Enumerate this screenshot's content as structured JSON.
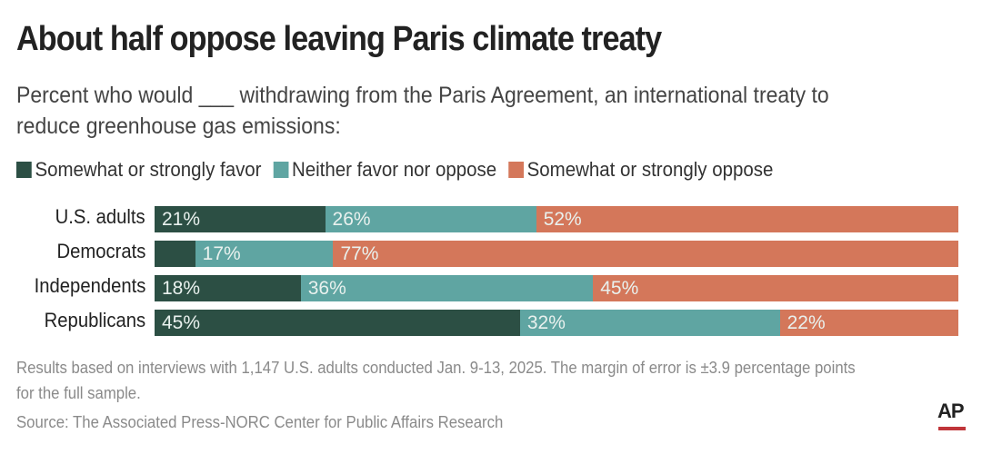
{
  "chart_data": {
    "type": "bar",
    "orientation": "horizontal-stacked",
    "title": "About half oppose leaving Paris climate treaty",
    "subtitle": "Percent who would ___ withdrawing from the Paris Agreement, an international treaty to reduce greenhouse gas emissions:",
    "categories": [
      "U.S. adults",
      "Democrats",
      "Independents",
      "Republicans"
    ],
    "series": [
      {
        "name": "Somewhat or strongly favor",
        "color": "#2c4f44",
        "values": [
          21,
          5,
          18,
          45
        ],
        "labels": [
          "21%",
          "",
          "18%",
          "45%"
        ]
      },
      {
        "name": "Neither favor nor oppose",
        "color": "#5fa5a2",
        "values": [
          26,
          17,
          36,
          32
        ],
        "labels": [
          "26%",
          "17%",
          "36%",
          "32%"
        ]
      },
      {
        "name": "Somewhat or strongly oppose",
        "color": "#d4775a",
        "values": [
          52,
          77,
          45,
          22
        ],
        "labels": [
          "52%",
          "77%",
          "45%",
          "22%"
        ]
      }
    ],
    "legend_position": "top-left",
    "grid": false
  },
  "footer": {
    "note": "Results based on interviews with 1,147 U.S. adults conducted Jan. 9-13, 2025. The margin of error is ±3.9 percentage points for the full sample.",
    "source": "Source: The Associated Press-NORC Center for Public Affairs Research",
    "logo": "AP"
  }
}
